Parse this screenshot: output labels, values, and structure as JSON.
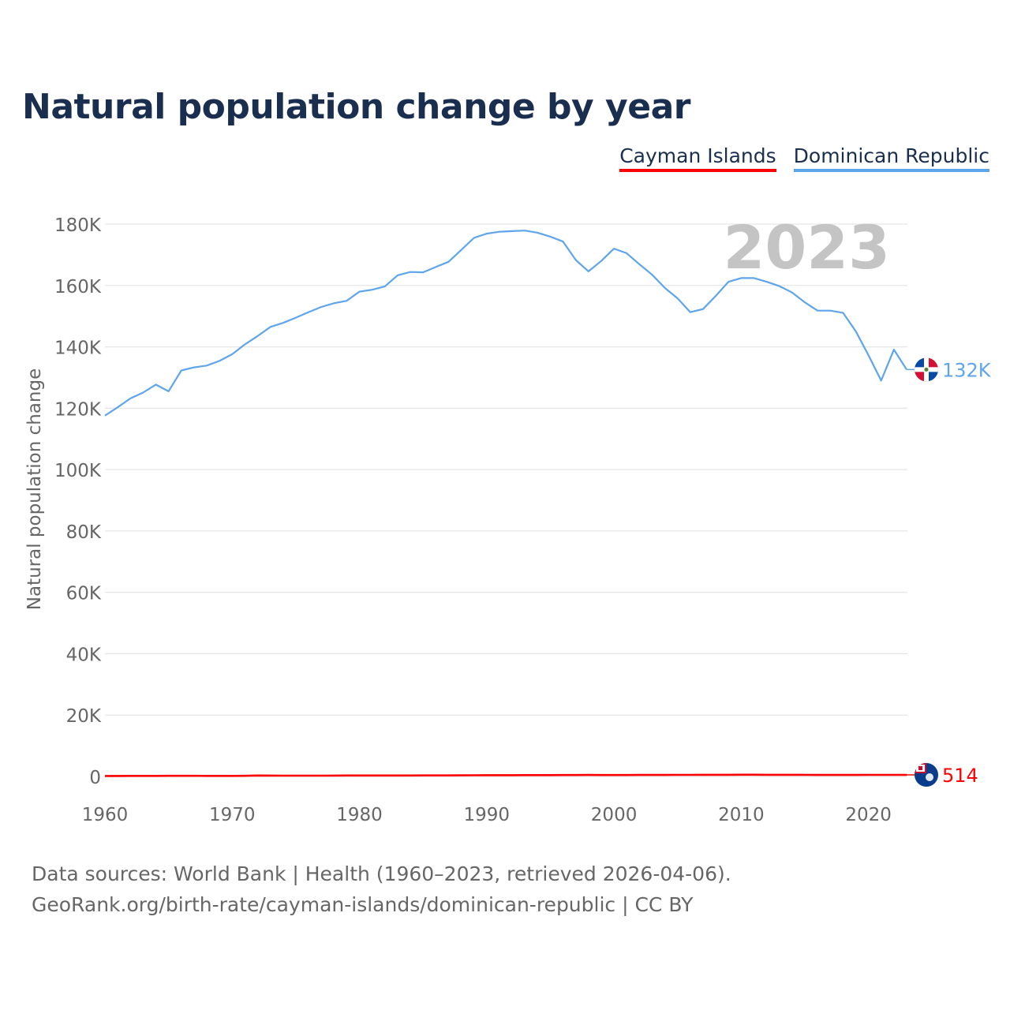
{
  "title": "Natural population change by year",
  "legend": [
    {
      "label": "Cayman Islands",
      "color": "#ff0000"
    },
    {
      "label": "Dominican Republic",
      "color": "#5ea5ec"
    }
  ],
  "source": {
    "line1": "Data sources: World Bank | Health (1960–2023, retrieved 2026-04-06).",
    "line2": "GeoRank.org/birth-rate/cayman-islands/dominican-republic | CC BY"
  },
  "chart_data": {
    "type": "line",
    "title": "Natural population change by year",
    "xlabel": "",
    "ylabel": "Natural population change",
    "xlim": [
      1960,
      2023
    ],
    "ylim": [
      0,
      180000
    ],
    "x_ticks": [
      1960,
      1970,
      1980,
      1990,
      2000,
      2010,
      2020
    ],
    "x_tick_labels": [
      "1960",
      "1970",
      "1980",
      "1990",
      "2000",
      "2010",
      "2020"
    ],
    "y_ticks": [
      0,
      20000,
      40000,
      60000,
      80000,
      100000,
      120000,
      140000,
      160000,
      180000
    ],
    "y_tick_labels": [
      "0",
      "20K",
      "40K",
      "60K",
      "80K",
      "100K",
      "120K",
      "140K",
      "160K",
      "180K"
    ],
    "grid": true,
    "legend_position": "top-right",
    "year_watermark": "2023",
    "x": [
      1960,
      1961,
      1962,
      1963,
      1964,
      1965,
      1966,
      1967,
      1968,
      1969,
      1970,
      1971,
      1972,
      1973,
      1974,
      1975,
      1976,
      1977,
      1978,
      1979,
      1980,
      1981,
      1982,
      1983,
      1984,
      1985,
      1986,
      1987,
      1988,
      1989,
      1990,
      1991,
      1992,
      1993,
      1994,
      1995,
      1996,
      1997,
      1998,
      1999,
      2000,
      2001,
      2002,
      2003,
      2004,
      2005,
      2006,
      2007,
      2008,
      2009,
      2010,
      2011,
      2012,
      2013,
      2014,
      2015,
      2016,
      2017,
      2018,
      2019,
      2020,
      2021,
      2022,
      2023
    ],
    "series": [
      {
        "name": "Cayman Islands",
        "color": "#ff0000",
        "end_label": "514",
        "flag": "cayman-islands",
        "values": [
          150,
          160,
          170,
          180,
          190,
          200,
          210,
          200,
          190,
          180,
          170,
          200,
          300,
          280,
          260,
          250,
          260,
          270,
          280,
          300,
          310,
          320,
          310,
          300,
          320,
          340,
          330,
          340,
          360,
          380,
          400,
          410,
          420,
          430,
          440,
          450,
          460,
          470,
          480,
          470,
          460,
          470,
          480,
          490,
          500,
          510,
          520,
          530,
          540,
          550,
          560,
          560,
          550,
          540,
          530,
          510,
          500,
          490,
          480,
          500,
          510,
          520,
          515,
          514
        ]
      },
      {
        "name": "Dominican Republic",
        "color": "#5ea5ec",
        "end_label": "132K",
        "flag": "dominican-republic",
        "values": [
          117600,
          120300,
          123200,
          125100,
          127700,
          125500,
          132300,
          133300,
          133900,
          135400,
          137600,
          140800,
          143500,
          146500,
          147800,
          149500,
          151300,
          153000,
          154200,
          155000,
          158000,
          158600,
          159700,
          163300,
          164400,
          164300,
          166000,
          167700,
          171600,
          175500,
          176900,
          177500,
          177700,
          177900,
          177200,
          175900,
          174300,
          168300,
          164600,
          168000,
          172000,
          170500,
          166900,
          163500,
          159200,
          155800,
          151300,
          152300,
          156600,
          161200,
          162400,
          162400,
          161200,
          159800,
          157700,
          154500,
          151800,
          151800,
          151100,
          145100,
          137300,
          129000,
          139100,
          132600
        ]
      }
    ]
  }
}
